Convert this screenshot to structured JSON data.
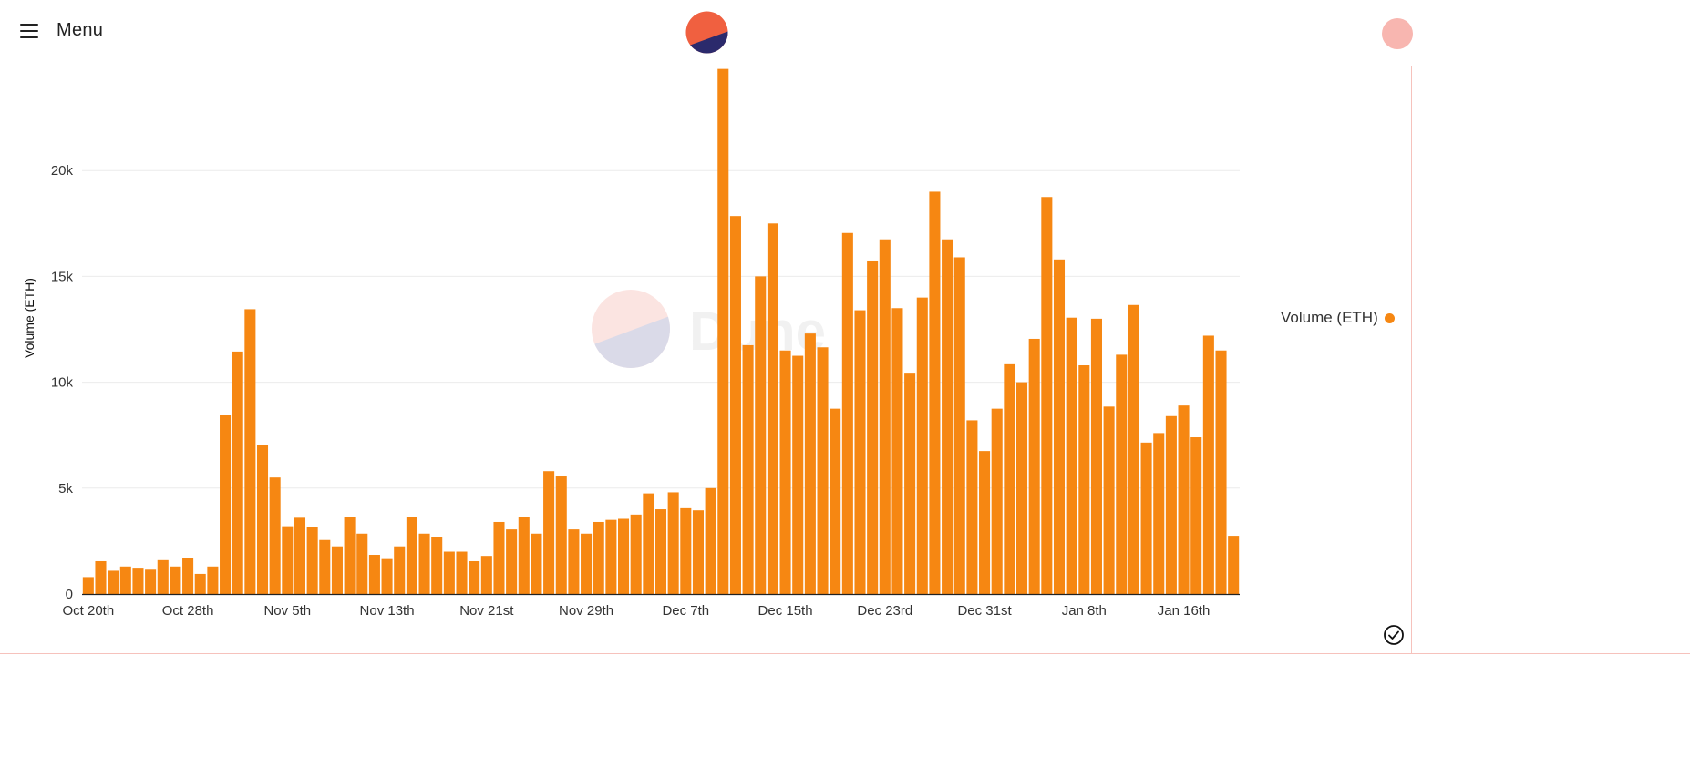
{
  "header": {
    "menu_label": "Menu"
  },
  "watermark": {
    "text": "Dune"
  },
  "colors": {
    "bar": "#f68712",
    "grid": "#ececec",
    "logo_top": "#f06040",
    "logo_bottom": "#2b2a6c"
  },
  "chart_data": {
    "type": "bar",
    "title": "",
    "xlabel": "",
    "ylabel": "Volume (ETH)",
    "ylim": [
      0,
      25000
    ],
    "ytick_values": [
      0,
      5000,
      10000,
      15000,
      20000
    ],
    "ytick_labels": [
      "0",
      "5k",
      "10k",
      "15k",
      "20k"
    ],
    "xtick_labels": [
      "Oct 20th",
      "Oct 28th",
      "Nov 5th",
      "Nov 13th",
      "Nov 21st",
      "Nov 29th",
      "Dec 7th",
      "Dec 15th",
      "Dec 23rd",
      "Dec 31st",
      "Jan 8th",
      "Jan 16th"
    ],
    "xtick_every": 8,
    "legend": {
      "position": "right",
      "entries": [
        "Volume (ETH)"
      ]
    },
    "grid": true,
    "series": [
      {
        "name": "Volume (ETH)",
        "values": [
          800,
          1550,
          1100,
          1300,
          1200,
          1150,
          1600,
          1300,
          1700,
          950,
          1300,
          8450,
          11450,
          13450,
          7050,
          5500,
          3200,
          3600,
          3150,
          2550,
          2250,
          3650,
          2850,
          1850,
          1650,
          2250,
          3650,
          2850,
          2700,
          2000,
          2000,
          1550,
          1800,
          3400,
          3050,
          3650,
          2850,
          5800,
          5550,
          3050,
          2850,
          3400,
          3500,
          3550,
          3750,
          4750,
          4000,
          4800,
          4050,
          3950,
          5000,
          24800,
          17850,
          11750,
          15000,
          17500,
          11500,
          11250,
          12300,
          11650,
          8750,
          17050,
          13400,
          15750,
          16750,
          13500,
          10450,
          14000,
          19000,
          16750,
          15900,
          8200,
          6750,
          8750,
          10850,
          10000,
          12050,
          18750,
          15800,
          13050,
          10800,
          13000,
          8850,
          11300,
          13650,
          7150,
          7600,
          8400,
          8900,
          7400,
          12200,
          11500,
          2750
        ]
      }
    ]
  }
}
